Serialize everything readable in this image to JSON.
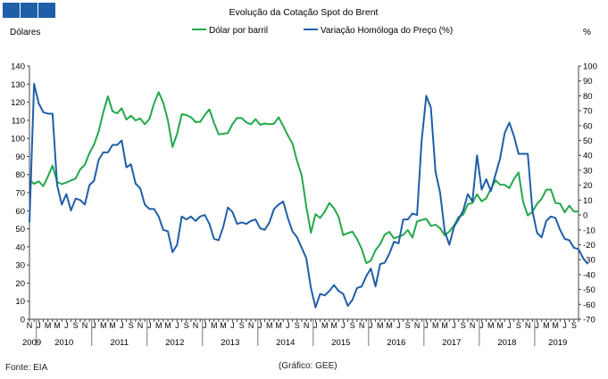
{
  "chart_data": {
    "type": "line",
    "title": "Evolução da Cotação Spot do Brent",
    "ylabel_left": "Dólares",
    "ylabel_right": "%",
    "ylim_left": [
      0,
      140
    ],
    "ylim_right": [
      -70,
      100
    ],
    "yticks_left": [
      0,
      10,
      20,
      30,
      40,
      50,
      60,
      70,
      80,
      90,
      100,
      110,
      120,
      130,
      140
    ],
    "yticks_right": [
      -70,
      -60,
      -50,
      -40,
      -30,
      -20,
      -10,
      0,
      10,
      20,
      30,
      40,
      50,
      60,
      70,
      80,
      90,
      100
    ],
    "month_letters": [
      "J",
      "F",
      "M",
      "A",
      "M",
      "J",
      "J",
      "A",
      "S",
      "O",
      "N",
      "D"
    ],
    "x_start": "2009-11",
    "x_end": "2019-10",
    "years": [
      {
        "label": "2009",
        "start": 0,
        "end": 1
      },
      {
        "label": "2010",
        "start": 2,
        "end": 13
      },
      {
        "label": "2011",
        "start": 14,
        "end": 25
      },
      {
        "label": "2012",
        "start": 26,
        "end": 37
      },
      {
        "label": "2013",
        "start": 38,
        "end": 49
      },
      {
        "label": "2014",
        "start": 50,
        "end": 61
      },
      {
        "label": "2015",
        "start": 62,
        "end": 73
      },
      {
        "label": "2016",
        "start": 74,
        "end": 85
      },
      {
        "label": "2017",
        "start": 86,
        "end": 97
      },
      {
        "label": "2018",
        "start": 98,
        "end": 109
      },
      {
        "label": "2019",
        "start": 110,
        "end": 119
      }
    ],
    "series": [
      {
        "name": "Dólar por barril",
        "axis": "left",
        "color": "#22a84a",
        "values": [
          77.0,
          74.9,
          76.2,
          73.6,
          78.9,
          84.9,
          75.9,
          74.7,
          75.6,
          76.7,
          77.8,
          82.9,
          85.4,
          91.8,
          96.6,
          103.8,
          114.4,
          123.2,
          115.0,
          113.8,
          116.6,
          110.4,
          112.5,
          109.9,
          111.0,
          107.8,
          110.7,
          119.3,
          125.5,
          119.7,
          110.0,
          95.2,
          102.6,
          113.3,
          112.9,
          111.7,
          109.0,
          109.1,
          112.9,
          116.0,
          108.5,
          102.2,
          102.6,
          102.9,
          107.9,
          111.3,
          111.2,
          108.8,
          107.8,
          110.6,
          107.5,
          108.2,
          107.8,
          108.1,
          111.6,
          106.8,
          101.6,
          97.1,
          87.4,
          79.5,
          62.3,
          47.8,
          58.1,
          56.0,
          59.5,
          64.3,
          61.3,
          56.6,
          46.5,
          47.6,
          48.4,
          44.3,
          38.9,
          31.0,
          32.4,
          38.2,
          41.5,
          46.8,
          48.3,
          44.7,
          45.7,
          46.6,
          49.3,
          45.2,
          54.1,
          54.9,
          55.5,
          51.6,
          52.3,
          50.3,
          46.4,
          48.5,
          51.7,
          56.6,
          57.8,
          63.6,
          64.3,
          69.1,
          65.2,
          66.9,
          72.1,
          76.8,
          74.4,
          74.3,
          72.5,
          77.5,
          81.1,
          64.8,
          57.4,
          59.4,
          63.8,
          66.6,
          71.6,
          71.7,
          64.3,
          63.9,
          59.1,
          62.8,
          59.5,
          59.6
        ]
      },
      {
        "name": "Variação Homóloga do Preço (%)",
        "axis": "right",
        "color": "#1f5fa8",
        "values": [
          -5.0,
          88.0,
          75.0,
          69.0,
          68.0,
          68.0,
          20.0,
          7.0,
          14.0,
          3.0,
          11.0,
          10.0,
          7.0,
          20.0,
          23.0,
          37.0,
          42.0,
          42.0,
          47.0,
          47.0,
          50.0,
          32.0,
          34.0,
          21.0,
          18.0,
          7.0,
          4.0,
          4.0,
          -1.0,
          -10.0,
          -11.0,
          -25.0,
          -20.0,
          -1.0,
          -3.0,
          -1.0,
          -4.0,
          -1.0,
          0.0,
          -6.0,
          -16.0,
          -17.0,
          -8.0,
          5.0,
          2.0,
          -6.0,
          -5.0,
          -6.0,
          -4.0,
          -3.0,
          -9.0,
          -10.0,
          -5.0,
          4.0,
          7.0,
          9.0,
          -2.0,
          -11.0,
          -15.0,
          -22.0,
          -29.0,
          -49.0,
          -62.0,
          -53.0,
          -54.0,
          -51.0,
          -47.0,
          -51.0,
          -53.0,
          -61.0,
          -57.0,
          -49.0,
          -48.0,
          -41.0,
          -36.0,
          -48.0,
          -33.0,
          -32.0,
          -26.0,
          -18.0,
          -19.0,
          -3.0,
          -3.0,
          1.0,
          0.0,
          50.0,
          80.0,
          72.0,
          29.0,
          15.0,
          -11.0,
          -20.0,
          -8.0,
          -3.0,
          3.0,
          14.0,
          9.0,
          40.0,
          17.0,
          24.0,
          16.0,
          27.0,
          38.0,
          55.0,
          62.0,
          53.0,
          41.0,
          41.0,
          41.0,
          3.0,
          -12.0,
          -15.0,
          -4.0,
          -1.0,
          -2.0,
          -10.0,
          -16.0,
          -17.0,
          -22.0,
          -23.0,
          -29.0,
          -33.0
        ]
      }
    ]
  },
  "footer": {
    "source": "Fonte: EIA",
    "credit": "(Gráfico: GEE)"
  }
}
